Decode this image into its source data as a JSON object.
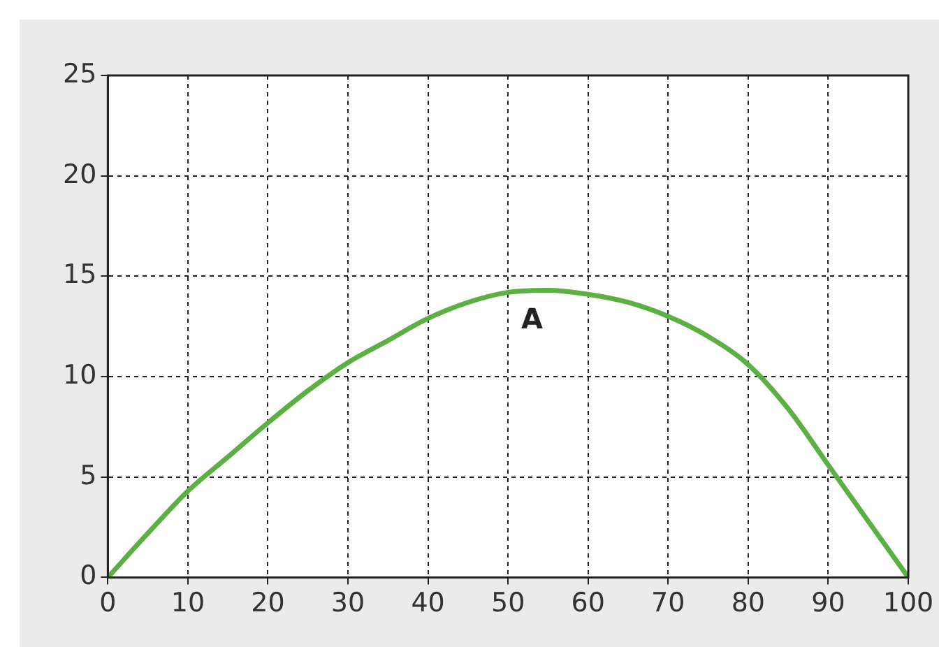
{
  "chart_data": {
    "type": "line",
    "x": [
      0,
      5,
      10,
      15,
      20,
      25,
      30,
      35,
      40,
      45,
      50,
      55,
      60,
      65,
      70,
      75,
      80,
      85,
      90,
      95,
      100
    ],
    "series": [
      {
        "color": "#5cb043",
        "values": [
          0,
          2.2,
          4.3,
          6.0,
          7.7,
          9.3,
          10.7,
          11.8,
          12.9,
          13.7,
          14.2,
          14.3,
          14.1,
          13.7,
          13.0,
          12.0,
          10.6,
          8.4,
          5.6,
          2.8,
          0
        ]
      }
    ],
    "xlim": [
      0,
      100
    ],
    "ylim": [
      0,
      25
    ],
    "xticks": [
      0,
      10,
      20,
      30,
      40,
      50,
      60,
      70,
      80,
      90,
      100
    ],
    "yticks": [
      0,
      5,
      10,
      15,
      20,
      25
    ],
    "grid": true,
    "legend": false,
    "marker": "none",
    "line_style": "solid",
    "annotations": [
      "A"
    ]
  }
}
